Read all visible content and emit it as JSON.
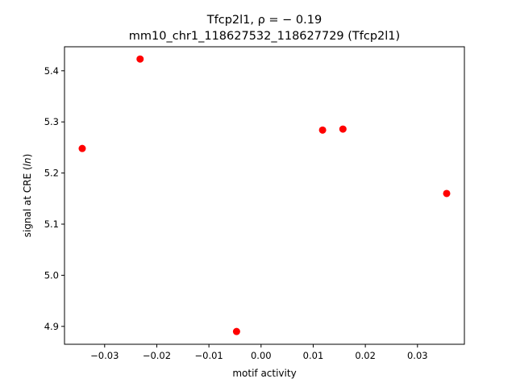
{
  "chart_data": {
    "type": "scatter",
    "title_line1": "Tfcp2l1, ρ = − 0.19",
    "title_line2": "mm10_chr1_118627532_118627729 (Tfcp2l1)",
    "xlabel": "motif activity",
    "ylabel_prefix": "signal at CRE (",
    "ylabel_italic": "ln",
    "ylabel_suffix": ")",
    "xlim": [
      -0.0377,
      0.039
    ],
    "ylim": [
      4.865,
      5.447
    ],
    "x_ticks": [
      {
        "value": -0.03,
        "label": "−0.03"
      },
      {
        "value": -0.02,
        "label": "−0.02"
      },
      {
        "value": -0.01,
        "label": "−0.01"
      },
      {
        "value": 0.0,
        "label": "0.00"
      },
      {
        "value": 0.01,
        "label": "0.01"
      },
      {
        "value": 0.02,
        "label": "0.02"
      },
      {
        "value": 0.03,
        "label": "0.03"
      }
    ],
    "y_ticks": [
      {
        "value": 4.9,
        "label": "4.9"
      },
      {
        "value": 5.0,
        "label": "5.0"
      },
      {
        "value": 5.1,
        "label": "5.1"
      },
      {
        "value": 5.2,
        "label": "5.2"
      },
      {
        "value": 5.3,
        "label": "5.3"
      },
      {
        "value": 5.4,
        "label": "5.4"
      }
    ],
    "grid": false,
    "marker_color": "#ff0000",
    "points": [
      {
        "x": -0.0343,
        "y": 5.248
      },
      {
        "x": -0.0232,
        "y": 5.423
      },
      {
        "x": -0.0047,
        "y": 4.89
      },
      {
        "x": 0.0118,
        "y": 5.284
      },
      {
        "x": 0.0157,
        "y": 5.286
      },
      {
        "x": 0.0356,
        "y": 5.16
      }
    ]
  }
}
